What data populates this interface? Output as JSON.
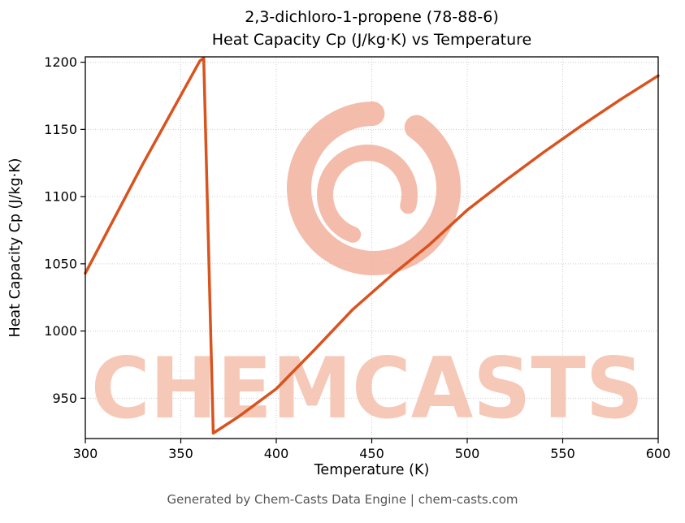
{
  "title_line1": "2,3-dichloro-1-propene (78-88-6)",
  "title_line2": "Heat Capacity Cp (J/kg·K) vs Temperature",
  "footer_text": "Generated by Chem-Casts Data Engine | chem-casts.com",
  "watermark": {
    "text": "CHEMCASTS",
    "text_color": "#f5c2af",
    "logo_color": "#f2b09b"
  },
  "chart_data": {
    "type": "line",
    "title": "2,3-dichloro-1-propene (78-88-6) Heat Capacity Cp (J/kg·K) vs Temperature",
    "xlabel": "Temperature (K)",
    "ylabel": "Heat Capacity Cp (J/kg·K)",
    "xlim": [
      300,
      600
    ],
    "ylim": [
      920,
      1204
    ],
    "xticks": [
      300,
      350,
      400,
      450,
      500,
      550,
      600
    ],
    "yticks": [
      950,
      1000,
      1050,
      1100,
      1150,
      1200
    ],
    "grid": true,
    "grid_style": "dotted",
    "grid_color": "#cccccc",
    "line_color": "#d9531e",
    "series": [
      {
        "name": "Heat Capacity Cp",
        "points": [
          [
            300,
            1043
          ],
          [
            330,
            1124
          ],
          [
            360,
            1201
          ],
          [
            362,
            1203
          ],
          [
            367,
            924
          ],
          [
            380,
            936
          ],
          [
            400,
            957
          ],
          [
            420,
            986
          ],
          [
            440,
            1016
          ],
          [
            460,
            1041
          ],
          [
            480,
            1064
          ],
          [
            500,
            1090
          ],
          [
            520,
            1112
          ],
          [
            540,
            1133
          ],
          [
            560,
            1153
          ],
          [
            580,
            1172
          ],
          [
            600,
            1190
          ]
        ]
      }
    ]
  }
}
